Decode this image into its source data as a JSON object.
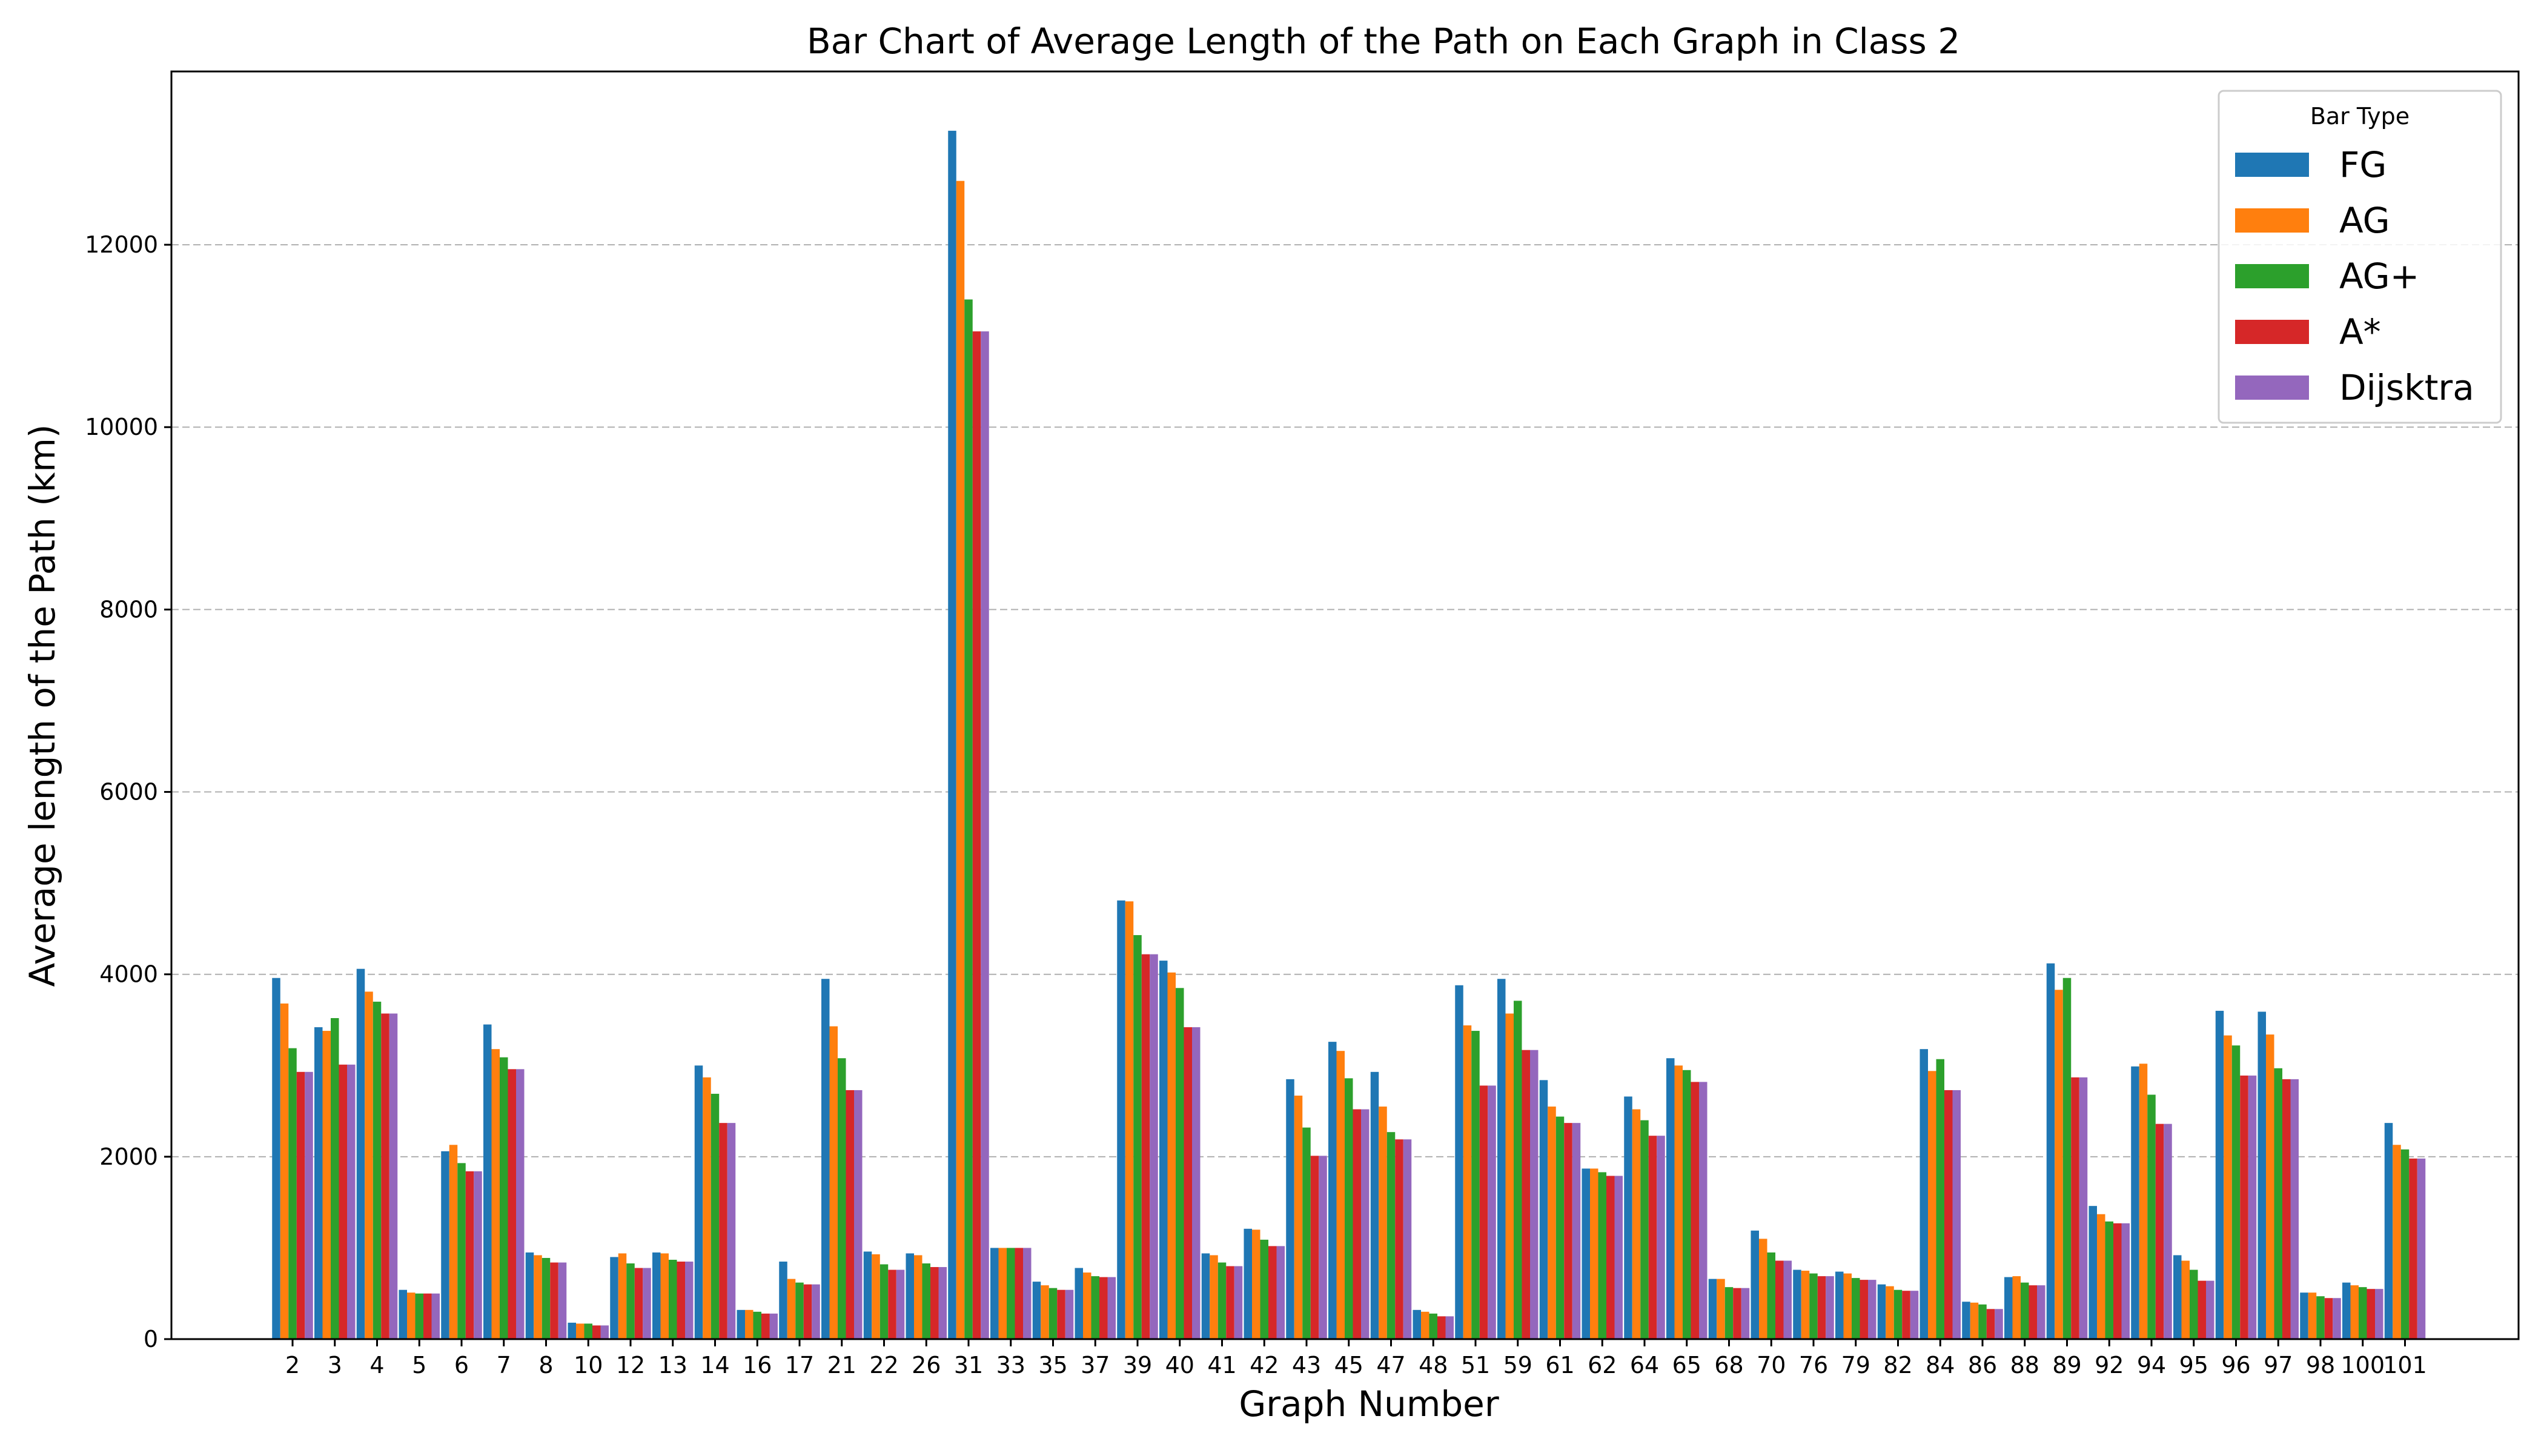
{
  "chart_data": {
    "type": "bar",
    "title": "Bar Chart of Average Length of the Path on Each Graph in Class 2",
    "xlabel": "Graph Number",
    "ylabel": "Average length of the Path (km)",
    "ylim": [
      0,
      13900
    ],
    "yticks": [
      0,
      2000,
      4000,
      6000,
      8000,
      10000,
      12000
    ],
    "grid": "y, dashed",
    "legend_title": "Bar Type",
    "legend_position": "top-right",
    "categories": [
      "2",
      "3",
      "4",
      "5",
      "6",
      "7",
      "8",
      "10",
      "12",
      "13",
      "14",
      "16",
      "17",
      "21",
      "22",
      "26",
      "31",
      "33",
      "35",
      "37",
      "39",
      "40",
      "41",
      "42",
      "43",
      "45",
      "47",
      "48",
      "51",
      "59",
      "61",
      "62",
      "64",
      "65",
      "68",
      "70",
      "76",
      "79",
      "82",
      "84",
      "86",
      "88",
      "89",
      "92",
      "94",
      "95",
      "96",
      "97",
      "98",
      "100",
      "101"
    ],
    "series": [
      {
        "name": "FG",
        "color": "#1f77b4",
        "values": [
          3960,
          3420,
          4060,
          540,
          2060,
          3450,
          950,
          180,
          900,
          950,
          3000,
          320,
          850,
          3950,
          960,
          940,
          13250,
          1000,
          630,
          780,
          4810,
          4150,
          940,
          1210,
          2850,
          3260,
          2930,
          320,
          3880,
          3950,
          2840,
          1870,
          2660,
          3080,
          660,
          1190,
          760,
          740,
          600,
          3180,
          410,
          680,
          4120,
          1460,
          2990,
          920,
          3600,
          3590,
          510,
          620,
          2370
        ]
      },
      {
        "name": "AG",
        "color": "#ff7f0e",
        "values": [
          3680,
          3380,
          3810,
          510,
          2130,
          3180,
          920,
          170,
          940,
          940,
          2870,
          320,
          660,
          3430,
          930,
          920,
          12700,
          1000,
          590,
          730,
          4800,
          4020,
          920,
          1200,
          2670,
          3160,
          2550,
          300,
          3440,
          3570,
          2550,
          1870,
          2520,
          3000,
          660,
          1100,
          750,
          720,
          580,
          2940,
          400,
          690,
          3830,
          1370,
          3020,
          860,
          3330,
          3340,
          510,
          590,
          2130
        ]
      },
      {
        "name": "AG+",
        "color": "#2ca02c",
        "values": [
          3190,
          3520,
          3700,
          500,
          1930,
          3090,
          890,
          170,
          830,
          870,
          2690,
          300,
          620,
          3080,
          820,
          830,
          11400,
          1000,
          560,
          690,
          4430,
          3850,
          840,
          1090,
          2320,
          2860,
          2270,
          280,
          3380,
          3710,
          2440,
          1830,
          2400,
          2950,
          570,
          950,
          720,
          670,
          540,
          3070,
          380,
          620,
          3960,
          1290,
          2680,
          760,
          3220,
          2970,
          470,
          570,
          2080
        ]
      },
      {
        "name": "A*",
        "color": "#d62728",
        "values": [
          2930,
          3010,
          3570,
          500,
          1840,
          2960,
          840,
          150,
          780,
          850,
          2370,
          280,
          600,
          2730,
          760,
          790,
          11050,
          1000,
          540,
          680,
          4220,
          3420,
          800,
          1020,
          2010,
          2520,
          2190,
          250,
          2780,
          3170,
          2370,
          1790,
          2230,
          2820,
          560,
          860,
          690,
          650,
          530,
          2730,
          330,
          590,
          2870,
          1270,
          2360,
          640,
          2890,
          2850,
          450,
          550,
          1980
        ]
      },
      {
        "name": "Dijsktra",
        "color": "#9467bd",
        "values": [
          2930,
          3010,
          3570,
          500,
          1840,
          2960,
          840,
          150,
          780,
          850,
          2370,
          280,
          600,
          2730,
          760,
          790,
          11050,
          1000,
          540,
          680,
          4220,
          3420,
          800,
          1020,
          2010,
          2520,
          2190,
          250,
          2780,
          3170,
          2370,
          1790,
          2230,
          2820,
          560,
          860,
          690,
          650,
          530,
          2730,
          330,
          590,
          2870,
          1270,
          2360,
          640,
          2890,
          2850,
          450,
          550,
          1980
        ]
      }
    ]
  }
}
